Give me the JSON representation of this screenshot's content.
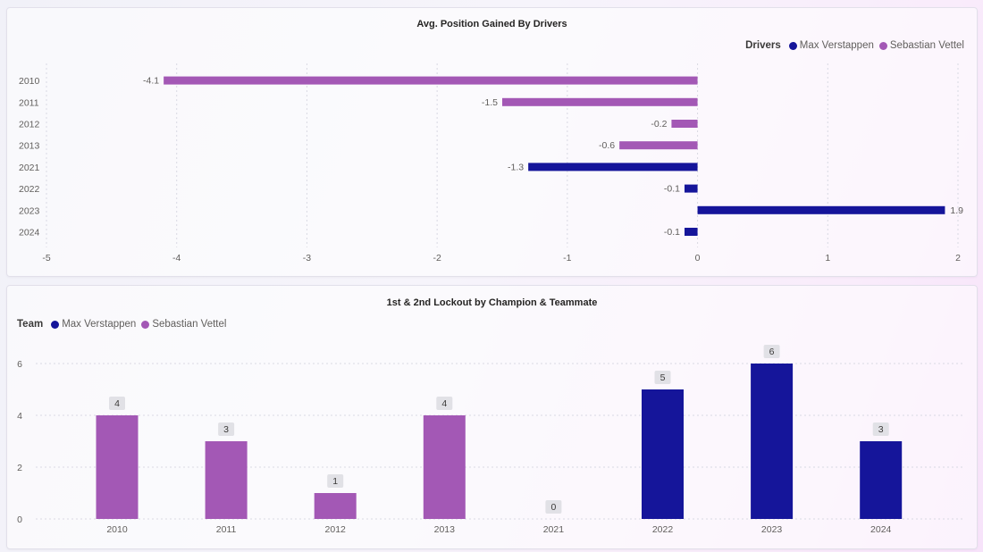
{
  "colors": {
    "max": "#15159a",
    "seb": "#a358b5",
    "axis_text": "#605e5c",
    "grid": "#d9d9e3",
    "label_box": "#e1e1e6"
  },
  "legend_names": [
    "Max Verstappen",
    "Sebastian Vettel"
  ],
  "chart_data": [
    {
      "type": "bar",
      "orientation": "horizontal",
      "title": "Avg. Position Gained By Drivers",
      "legend_title": "Drivers",
      "legend_position": "top-right",
      "xlim": [
        -5,
        2
      ],
      "xticks": [
        -5,
        -4,
        -3,
        -2,
        -1,
        0,
        1,
        2
      ],
      "grid": true,
      "rows": [
        {
          "category": "2010",
          "driver": "Sebastian Vettel",
          "value": -4.1,
          "label": "-4.1"
        },
        {
          "category": "2011",
          "driver": "Sebastian Vettel",
          "value": -1.5,
          "label": "-1.5"
        },
        {
          "category": "2012",
          "driver": "Sebastian Vettel",
          "value": -0.2,
          "label": "-0.2"
        },
        {
          "category": "2013",
          "driver": "Sebastian Vettel",
          "value": -0.6,
          "label": "-0.6"
        },
        {
          "category": "2021",
          "driver": "Max Verstappen",
          "value": -1.3,
          "label": "-1.3"
        },
        {
          "category": "2022",
          "driver": "Max Verstappen",
          "value": -0.1,
          "label": "-0.1"
        },
        {
          "category": "2023",
          "driver": "Max Verstappen",
          "value": 1.9,
          "label": "1.9"
        },
        {
          "category": "2024",
          "driver": "Max Verstappen",
          "value": -0.1,
          "label": "-0.1"
        }
      ]
    },
    {
      "type": "bar",
      "orientation": "vertical",
      "title": "1st & 2nd Lockout by Champion & Teammate",
      "legend_title": "Team",
      "legend_position": "top-left",
      "ylim": [
        0,
        6
      ],
      "yticks": [
        0,
        2,
        4,
        6
      ],
      "grid": true,
      "categories": [
        "2010",
        "2011",
        "2012",
        "2013",
        "2021",
        "2022",
        "2023",
        "2024"
      ],
      "series": [
        {
          "name": "Sebastian Vettel",
          "values": [
            4,
            3,
            1,
            4,
            null,
            null,
            null,
            null
          ]
        },
        {
          "name": "Max Verstappen",
          "values": [
            null,
            null,
            null,
            null,
            0,
            5,
            6,
            3
          ]
        }
      ],
      "data_labels": [
        "4",
        "3",
        "1",
        "4",
        "0",
        "5",
        "6",
        "3"
      ]
    }
  ]
}
